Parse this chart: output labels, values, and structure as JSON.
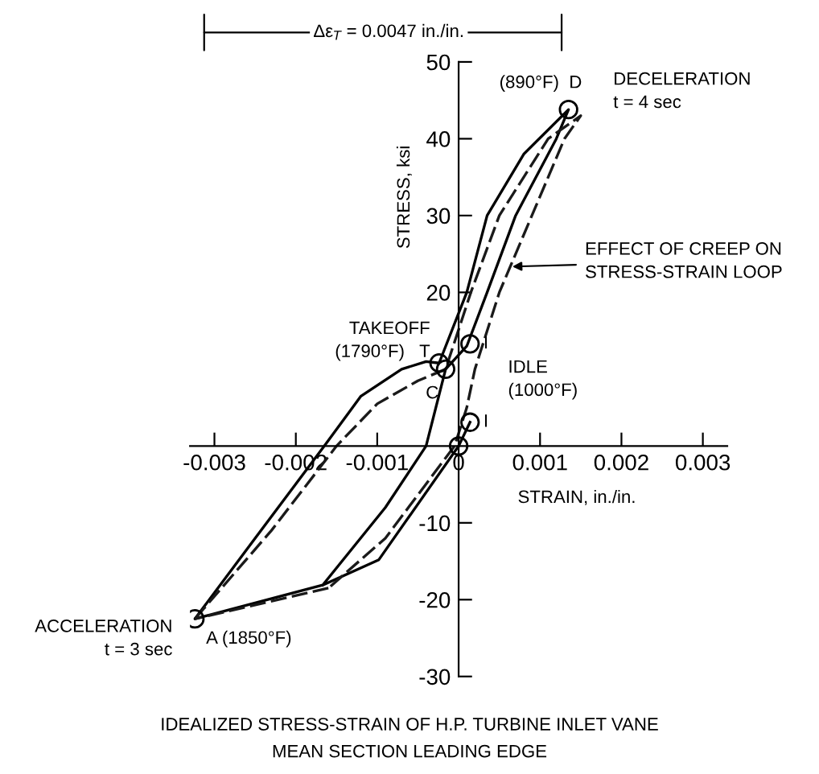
{
  "chart_data": {
    "type": "line",
    "title": "IDEALIZED STRESS-STRAIN OF H.P. TURBINE INLET VANE\nMEAN SECTION LEADING EDGE",
    "xlabel": "STRAIN, in./in.",
    "ylabel": "STRESS, ksi",
    "xlim": [
      -0.0033,
      0.0033
    ],
    "ylim": [
      -30,
      50
    ],
    "xticks": [
      -0.003,
      -0.002,
      -0.001,
      0,
      0.001,
      0.002,
      0.003
    ],
    "yticks": [
      -30,
      -20,
      -10,
      20,
      30,
      40,
      50
    ],
    "grid": false,
    "legend": false,
    "series": [
      {
        "line_style": "solid",
        "color": "#000000",
        "x": [
          0,
          -0.00098,
          -0.00167,
          -0.00324,
          -0.0025,
          -0.00165,
          -0.0012,
          -0.0007,
          -0.0004,
          -0.00024,
          0.0001,
          0.00035,
          0.0008,
          0.00135,
          0.0012,
          0.0007,
          0.00035,
          0.0001,
          -0.00016,
          -0.0004,
          -0.0009,
          -0.00167
        ],
        "values": [
          0,
          -14.8,
          -18.1,
          -22.5,
          -12,
          0,
          6.5,
          10,
          11,
          10.8,
          20,
          30,
          38,
          43.8,
          40,
          30,
          20,
          13,
          10,
          0,
          -8,
          -18.1
        ]
      },
      {
        "line_style": "dashed",
        "color": "#1a1a1a",
        "x": [
          -0.00324,
          -0.0023,
          -0.0015,
          -0.001,
          -0.0005,
          -0.00016,
          0.00015,
          0.0005,
          0.0011,
          0.0015,
          0.0013,
          0.0009,
          0.0005,
          0.0002,
          0.0001,
          -5e-05,
          -0.0009,
          -0.0016
        ],
        "values": [
          -22.5,
          -11,
          0,
          5.5,
          8.5,
          10,
          20,
          30,
          40,
          43,
          40,
          30,
          20,
          10,
          5,
          0,
          -12,
          -18.5
        ]
      },
      {
        "line_style": "dashed",
        "color": "#1a1a1a",
        "x": [
          -0.0016,
          -0.00324
        ],
        "values": [
          -18.5,
          -22.5
        ]
      },
      {
        "line_style": "solid",
        "color": "#000000",
        "x": [
          0,
          0.00014
        ],
        "values": [
          0,
          3.1
        ]
      },
      {
        "type": "scatter",
        "marker": "circle",
        "color": "#000000",
        "x": [
          -0.00324,
          0.00135,
          -0.00024,
          -0.00016,
          0.00014,
          0.00014,
          0
        ],
        "values": [
          -22.5,
          43.8,
          10.8,
          10,
          13.3,
          3.1,
          0
        ]
      }
    ],
    "annotations": [
      {
        "text": "(890°F)  D",
        "x": 0.00135,
        "y": 43.8
      },
      {
        "text": "DECELERATION\nt = 4 sec",
        "x": 0.00135,
        "y": 43.8
      },
      {
        "text": "TAKEOFF\n(1790°F)   T",
        "x": -0.00024,
        "y": 10.8
      },
      {
        "text": "C",
        "x": -0.00016,
        "y": 10
      },
      {
        "text": "I",
        "x": 0.00014,
        "y": 13.3
      },
      {
        "text": "IDLE\n(1000°F)",
        "x": 0.00014,
        "y": 13.3
      },
      {
        "text": "I",
        "x": 0.00014,
        "y": 3.1
      },
      {
        "text": "ACCELERATION\nt = 3 sec",
        "x": -0.00324,
        "y": -22.5
      },
      {
        "text": "A (1850°F)",
        "x": -0.00324,
        "y": -22.5
      },
      "EFFECT OF CREEP ON\nSTRESS-STRAIN LOOP",
      "Δε$_{T}$ = 0.0047 in./in."
    ]
  }
}
